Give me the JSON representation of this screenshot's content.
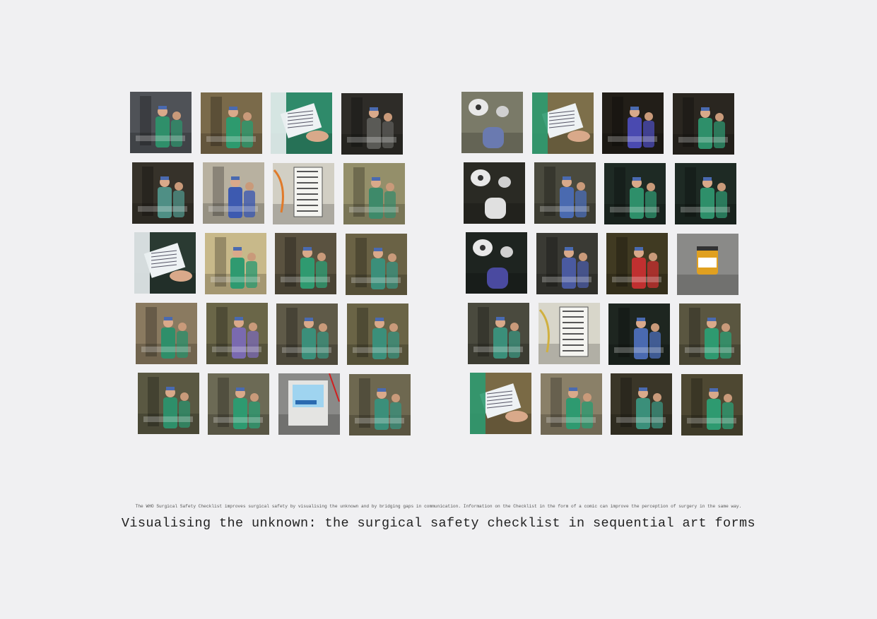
{
  "caption": "The WHO Surgical Safety Checklist improves surgical safety by visualising the unknown and by bridging gaps in communication. Information on the Checklist in the form of a comic can improve the perception of surgery in the same way.",
  "title": "Visualising the unknown: the surgical safety checklist in sequential art forms",
  "left_panels": [
    {
      "scene": "corridor-staff",
      "bg": "#4f5257",
      "fg": "#2f8f6a"
    },
    {
      "scene": "doorway-group",
      "bg": "#7a6a4a",
      "fg": "#2d9a6e"
    },
    {
      "scene": "hands-paper",
      "bg": "#2f8a6a",
      "fg": "#e8eef0"
    },
    {
      "scene": "dark-door",
      "bg": "#2e2c28",
      "fg": "#5a5a56"
    },
    {
      "scene": "mirror-reflection",
      "bg": "#36322a",
      "fg": "#4f8f85"
    },
    {
      "scene": "wall-monitor",
      "bg": "#b8b1a0",
      "fg": "#3d5ab0"
    },
    {
      "scene": "checklist-board",
      "bg": "#d2cfc4",
      "fg": "#e07a2a"
    },
    {
      "scene": "instrument-tray",
      "bg": "#948f6a",
      "fg": "#3e8a6a"
    },
    {
      "scene": "hands-paper",
      "bg": "#2a3a32",
      "fg": "#e8eef0"
    },
    {
      "scene": "door-figure",
      "bg": "#c8b98a",
      "fg": "#2f9a70"
    },
    {
      "scene": "room-two-figures",
      "bg": "#5a5240",
      "fg": "#2f9a70"
    },
    {
      "scene": "patient-team",
      "bg": "#6a6245",
      "fg": "#3b8f7a"
    },
    {
      "scene": "anaesthesia",
      "bg": "#8a7a60",
      "fg": "#2e8f6a"
    },
    {
      "scene": "patient-purple",
      "bg": "#6a6648",
      "fg": "#7a6ab0"
    },
    {
      "scene": "team-bed",
      "bg": "#5f5a48",
      "fg": "#3b8f7a"
    },
    {
      "scene": "team-drapes",
      "bg": "#6a6446",
      "fg": "#3b8f7a"
    },
    {
      "scene": "scrub-table",
      "bg": "#5a5842",
      "fg": "#2e8f6a"
    },
    {
      "scene": "scrub-basin",
      "bg": "#6c6a55",
      "fg": "#2e9a70"
    },
    {
      "scene": "monitor-screen",
      "bg": "#8a8a88",
      "fg": "#3aa0d8"
    },
    {
      "scene": "two-talking",
      "bg": "#6e6850",
      "fg": "#3b8f7a"
    }
  ],
  "right_panels": [
    {
      "scene": "theatre-lights",
      "bg": "#7a7a68",
      "fg": "#6a7ab0"
    },
    {
      "scene": "writing-form",
      "bg": "#7d6f4a",
      "fg": "#2e9a70"
    },
    {
      "scene": "scissors-face",
      "bg": "#221e18",
      "fg": "#4a4ab0"
    },
    {
      "scene": "hand-drape",
      "bg": "#2a2620",
      "fg": "#2e8f6a"
    },
    {
      "scene": "dark-lamp",
      "bg": "#2a2a24",
      "fg": "#e0e0e0"
    },
    {
      "scene": "surgeons-patient",
      "bg": "#4a4a3e",
      "fg": "#4a6ab0"
    },
    {
      "scene": "gloved-hand",
      "bg": "#1e2a24",
      "fg": "#2e8f6a"
    },
    {
      "scene": "hands-incision",
      "bg": "#1e2a24",
      "fg": "#2e8f6a"
    },
    {
      "scene": "dark-lamps-team",
      "bg": "#1e2420",
      "fg": "#4a4aa0"
    },
    {
      "scene": "theatre-team",
      "bg": "#3a3a34",
      "fg": "#4a5aa0"
    },
    {
      "scene": "specimen",
      "bg": "#403a22",
      "fg": "#c03030"
    },
    {
      "scene": "jar",
      "bg": "#8a8a88",
      "fg": "#e0a020"
    },
    {
      "scene": "xray-table",
      "bg": "#4a4a3e",
      "fg": "#3b8f7a"
    },
    {
      "scene": "count-board",
      "bg": "#d8d6ca",
      "fg": "#d0b040"
    },
    {
      "scene": "scope-drape",
      "bg": "#1e2620",
      "fg": "#4a6ab0"
    },
    {
      "scene": "nurse-paper",
      "bg": "#5a5640",
      "fg": "#2e9a70"
    },
    {
      "scene": "writing-form",
      "bg": "#7a6a45",
      "fg": "#2e9a70"
    },
    {
      "scene": "trolley",
      "bg": "#8a8068",
      "fg": "#2e9a70"
    },
    {
      "scene": "patient-exit",
      "bg": "#3a3628",
      "fg": "#3b8f7a"
    },
    {
      "scene": "doorway-patient",
      "bg": "#4e4832",
      "fg": "#2e9a70"
    }
  ]
}
